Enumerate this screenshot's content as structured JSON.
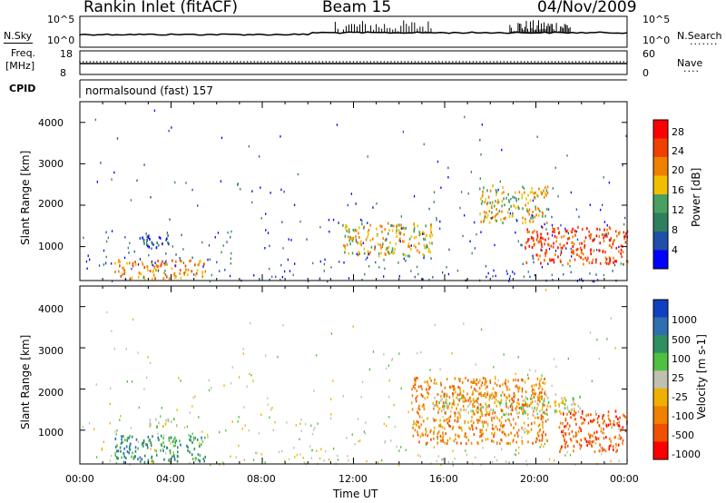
{
  "header": {
    "station": "Rankin Inlet (fitACF)",
    "beam": "Beam 15",
    "date": "04/Nov/2009"
  },
  "top_panels": {
    "nsky_label": "N.Sky",
    "nsky_ticks": [
      "10^5",
      "10^0"
    ],
    "nsearch_label": "N.Search",
    "nsearch_ticks": [
      "10^5",
      "10^0"
    ],
    "freq_label_1": "Freq.",
    "freq_label_2": "[MHz]",
    "freq_ticks": [
      "18",
      "8"
    ],
    "nave_label": "Nave",
    "nave_ticks": [
      "60",
      "0"
    ],
    "cpid_label": "CPID",
    "cpid_value": "normalsound (fast) 157"
  },
  "colors": {
    "power_scale": [
      "#0000ff",
      "#1f4fa8",
      "#2f7f5f",
      "#4aa060",
      "#f0c000",
      "#f08000",
      "#f04000",
      "#ff0000"
    ],
    "velocity_scale": [
      "#1040c0",
      "#2f6fb0",
      "#2f8f5f",
      "#4fc040",
      "#c0c0b0",
      "#f0b000",
      "#f08000",
      "#f05000",
      "#ff0000"
    ]
  },
  "chart_data": [
    {
      "type": "heatmap",
      "quantity": "Power",
      "ylabel": "Slant Range [km]",
      "yticks": [
        "1000",
        "2000",
        "3000",
        "4000"
      ],
      "ylim": [
        180,
        4500
      ],
      "colorbar_label": "Power [dB]",
      "colorbar_ticks": [
        "4",
        "8",
        "12",
        "16",
        "20",
        "24",
        "28"
      ],
      "features": [
        {
          "t": [
            1.5,
            5.5
          ],
          "r": [
            250,
            700
          ],
          "value_db": 24
        },
        {
          "t": [
            2.5,
            4.0
          ],
          "r": [
            1000,
            1300
          ],
          "value_db": 8
        },
        {
          "t": [
            11.5,
            15.5
          ],
          "r": [
            800,
            1600
          ],
          "value_db": 20
        },
        {
          "t": [
            17.5,
            20.5
          ],
          "r": [
            1600,
            2500
          ],
          "value_db": 20
        },
        {
          "t": [
            19.5,
            24.0
          ],
          "r": [
            600,
            1500
          ],
          "value_db": 28
        }
      ]
    },
    {
      "type": "heatmap",
      "quantity": "Velocity",
      "ylabel": "Slant Range [km]",
      "yticks": [
        "1000",
        "2000",
        "3000",
        "4000"
      ],
      "ylim": [
        180,
        4500
      ],
      "xlabel": "Time UT",
      "xticks": [
        "00:00",
        "04:00",
        "08:00",
        "12:00",
        "16:00",
        "20:00",
        "00:00"
      ],
      "xlim_hours": [
        0,
        24
      ],
      "colorbar_label": "Velocity [m s-1]",
      "colorbar_ticks": [
        "1000",
        "500",
        "100",
        "25",
        "-25",
        "-100",
        "-500",
        "-1000"
      ],
      "features": [
        {
          "t": [
            1.5,
            5.5
          ],
          "r": [
            250,
            900
          ],
          "value_ms": 100
        },
        {
          "t": [
            3.0,
            4.5
          ],
          "r": [
            1100,
            1300
          ],
          "value_ms": 0
        },
        {
          "t": [
            15.5,
            22.0
          ],
          "r": [
            1400,
            1900
          ],
          "value_ms": 0
        },
        {
          "t": [
            14.5,
            20.5
          ],
          "r": [
            700,
            2300
          ],
          "value_ms": -100
        },
        {
          "t": [
            21.0,
            24.0
          ],
          "r": [
            500,
            1500
          ],
          "value_ms": -500
        }
      ]
    }
  ]
}
